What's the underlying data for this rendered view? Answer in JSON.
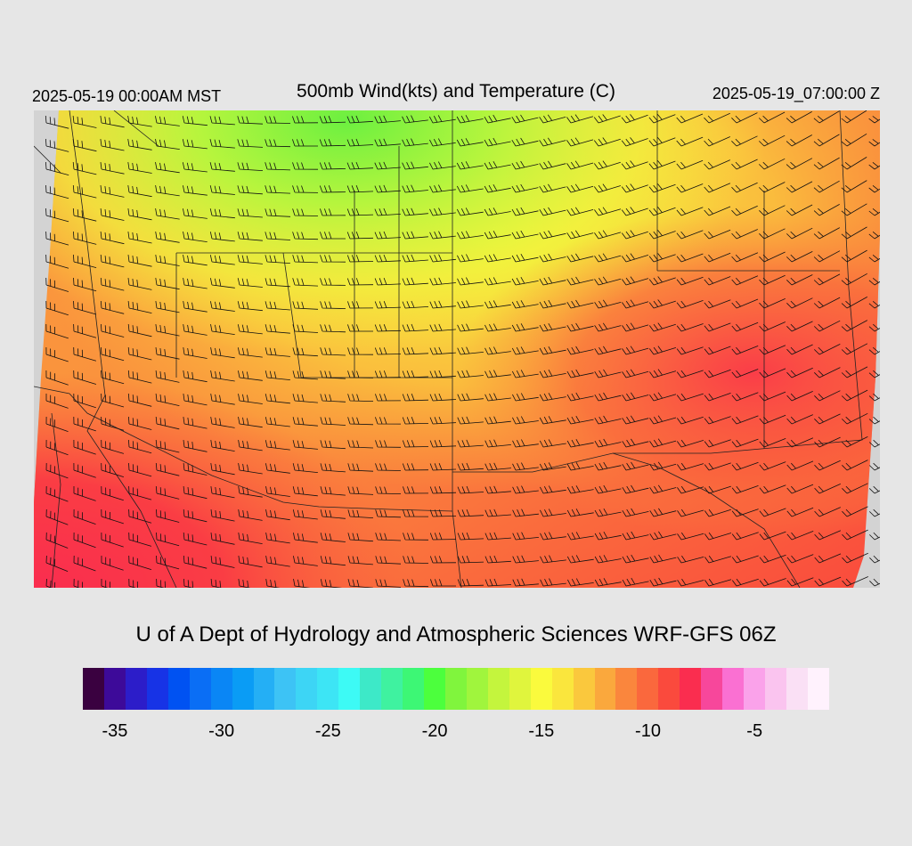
{
  "header": {
    "left": "2025-05-19 00:00AM MST",
    "title": "500mb Wind(kts) and Temperature (C)",
    "right": "2025-05-19_07:00:00 Z"
  },
  "credit": "U of A Dept of Hydrology and Atmospheric Sciences WRF-GFS 06Z",
  "map": {
    "field": "500mb temperature (C) with wind barbs (kts)",
    "temperature_range_c": [
      -21,
      -6
    ],
    "coldest_region": "northern (Montana/Wyoming), about -20 to -21 C",
    "warmest_region": "southwest California coast and eastern plains, about -7 to -6 C",
    "wind_flow": "westerly to southwesterly across the west, southwesterly jet over the eastern portion"
  },
  "colorbar": {
    "colors": [
      "#3a0140",
      "#3d0a99",
      "#2c1dc9",
      "#1733e6",
      "#0052f2",
      "#0a6ef5",
      "#0a86f5",
      "#0a9cf5",
      "#24aff5",
      "#3dc3f5",
      "#3dd5f5",
      "#3de5f5",
      "#3dfaf5",
      "#3de9c8",
      "#3ff2a0",
      "#3df775",
      "#4cff3d",
      "#80f53d",
      "#a0f53d",
      "#c4f53d",
      "#e0f53d",
      "#fafa3d",
      "#fae63d",
      "#fac83d",
      "#faa83d",
      "#fa863d",
      "#fa683d",
      "#fa4a3d",
      "#fa2d4f",
      "#f7479b",
      "#fa70d2",
      "#faa2ea",
      "#fac4ef",
      "#fae0f5",
      "#fff2fd"
    ],
    "ticks": [
      {
        "label": "-35",
        "index": 1
      },
      {
        "label": "-30",
        "index": 6
      },
      {
        "label": "-25",
        "index": 11
      },
      {
        "label": "-20",
        "index": 16
      },
      {
        "label": "-15",
        "index": 21
      },
      {
        "label": "-10",
        "index": 26
      },
      {
        "label": "-5",
        "index": 31
      }
    ]
  }
}
